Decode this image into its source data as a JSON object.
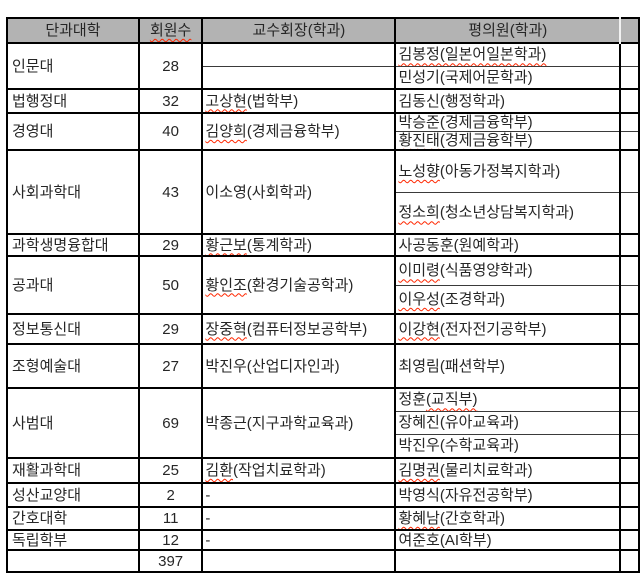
{
  "colors": {
    "header_bg": "#b3b3b3",
    "border_strong": "#000000",
    "border_thin": "#3a3a3a",
    "squiggle": "#ff2600"
  },
  "table": {
    "headers": [
      {
        "label": "단과대학",
        "squiggle": null
      },
      {
        "label": "회원수",
        "squiggle": "full"
      },
      {
        "label": "교수회장(학과)",
        "squiggle": null
      },
      {
        "label": "평의원(학과)",
        "squiggle": null
      },
      {
        "label": "",
        "squiggle": null
      }
    ],
    "groups": [
      {
        "college": "인문대",
        "members": "28",
        "chair": {
          "text": "",
          "squiggle": null,
          "split": true
        },
        "council": [
          {
            "text": "김봉정(일본어일본학과)",
            "squiggle": "full"
          },
          {
            "text": "민성기(국제어문학과)",
            "squiggle": null
          }
        ]
      },
      {
        "college": "법행정대",
        "members": "32",
        "chair": {
          "text": "고상현(법학부)",
          "squiggle": "name",
          "split": false
        },
        "council": [
          {
            "text": "김동신(행정학과)",
            "squiggle": null
          }
        ]
      },
      {
        "college": "경영대",
        "members": "40",
        "chair": {
          "text": "김양희(경제금융학부)",
          "squiggle": "name",
          "split": false
        },
        "council": [
          {
            "text": "박승준(경제금융학부)",
            "squiggle": null
          },
          {
            "text": "황진태(경제금융학부)",
            "squiggle": "name"
          }
        ]
      },
      {
        "college": "사회과학대",
        "members": "43",
        "chair": {
          "text": "이소영(사회학과)",
          "squiggle": null,
          "split": false
        },
        "council": [
          {
            "text": "노성향(아동가정복지학과)",
            "squiggle": "name"
          },
          {
            "text": "정소희(청소년상담복지학과)",
            "squiggle": "name"
          }
        ]
      },
      {
        "college": "과학생명융합대",
        "members": "29",
        "chair": {
          "text": "황근보(통계학과)",
          "squiggle": "name",
          "split": false
        },
        "council": [
          {
            "text": "사공동훈(원예학과)",
            "squiggle": null
          }
        ]
      },
      {
        "college": "공과대",
        "members": "50",
        "chair": {
          "text": "황인조(환경기술공학과)",
          "squiggle": "name",
          "split": false
        },
        "council": [
          {
            "text": "이미령(식품영양학과)",
            "squiggle": "name"
          },
          {
            "text": "이우성(조경학과)",
            "squiggle": "name"
          }
        ]
      },
      {
        "college": "정보통신대",
        "members": "29",
        "chair": {
          "text": "장중혁(컴퓨터정보공학부)",
          "squiggle": "name",
          "split": false
        },
        "council": [
          {
            "text": "이강현(전자전기공학부)",
            "squiggle": "name"
          }
        ]
      },
      {
        "college": "조형예술대",
        "members": "27",
        "chair": {
          "text": "박진우(산업디자인과)",
          "squiggle": null,
          "split": false
        },
        "council": [
          {
            "text": "최영림(패션학부)",
            "squiggle": null
          }
        ]
      },
      {
        "college": "사범대",
        "members": "69",
        "chair": {
          "text": "박종근(지구과학교육과)",
          "squiggle": null,
          "split": false
        },
        "council": [
          {
            "text": "정훈(교직부)",
            "squiggle": "dept"
          },
          {
            "text": "장혜진(유아교육과)",
            "squiggle": null
          },
          {
            "text": "박진우(수학교육과)",
            "squiggle": null
          }
        ]
      },
      {
        "college": "재활과학대",
        "members": "25",
        "chair": {
          "text": "김환(작업치료학과)",
          "squiggle": "name",
          "split": false
        },
        "council": [
          {
            "text": "김명권(물리치료학과)",
            "squiggle": "name"
          }
        ]
      },
      {
        "college": "성산교양대",
        "members": "2",
        "chair": {
          "text": "-",
          "squiggle": null,
          "split": false
        },
        "council": [
          {
            "text": "박영식(자유전공학부)",
            "squiggle": null
          }
        ]
      },
      {
        "college": "간호대학",
        "members": "11",
        "chair": {
          "text": "-",
          "squiggle": null,
          "split": false
        },
        "council": [
          {
            "text": "황혜남(간호학과)",
            "squiggle": "name"
          }
        ]
      },
      {
        "college": "독립학부",
        "members": "12",
        "chair": {
          "text": "-",
          "squiggle": null,
          "split": false
        },
        "council": [
          {
            "text": "여준호(AI학부)",
            "squiggle": null
          }
        ]
      }
    ],
    "total": "397"
  }
}
